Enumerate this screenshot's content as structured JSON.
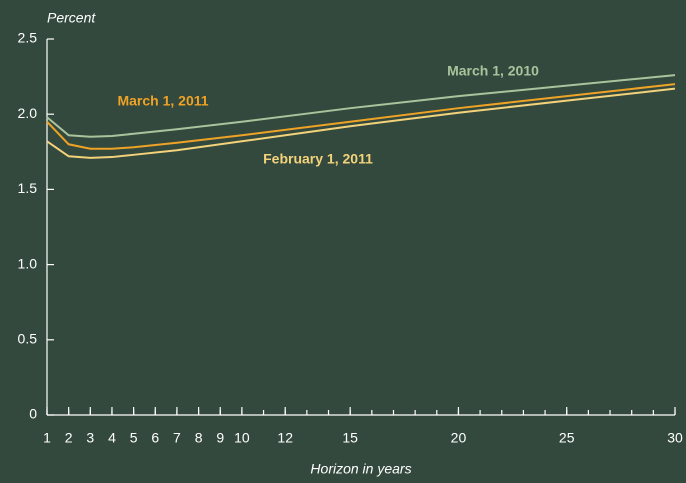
{
  "chart_data": {
    "type": "line",
    "ylabel": "Percent",
    "xlabel": "Horizon in years",
    "x": [
      1,
      2,
      3,
      4,
      5,
      7,
      10,
      15,
      20,
      25,
      30
    ],
    "series": [
      {
        "name": "March 1, 2010",
        "color": "#a9c39c",
        "values": [
          1.98,
          1.86,
          1.85,
          1.855,
          1.87,
          1.9,
          1.95,
          2.04,
          2.12,
          2.19,
          2.26
        ]
      },
      {
        "name": "March 1, 2011",
        "color": "#eea226",
        "values": [
          1.95,
          1.8,
          1.77,
          1.77,
          1.78,
          1.81,
          1.86,
          1.95,
          2.04,
          2.12,
          2.2
        ]
      },
      {
        "name": "February 1, 2011",
        "color": "#f2d27a",
        "values": [
          1.82,
          1.72,
          1.71,
          1.715,
          1.73,
          1.76,
          1.82,
          1.92,
          2.01,
          2.09,
          2.17
        ]
      }
    ],
    "xlim": [
      1,
      30
    ],
    "xticks": [
      1,
      2,
      3,
      4,
      5,
      6,
      7,
      8,
      9,
      10,
      12,
      15,
      20,
      25,
      30
    ],
    "xminor_ticks": [
      1,
      2,
      3,
      4,
      5,
      6,
      7,
      8,
      9,
      10,
      11,
      12,
      13,
      14,
      15,
      16,
      17,
      18,
      19,
      20,
      21,
      22,
      23,
      24,
      25,
      26,
      27,
      28,
      29,
      30
    ],
    "ylim": [
      0,
      2.5
    ],
    "yticks": [
      0,
      0.5,
      {
        "value": 1,
        "label": "1.0"
      },
      1.5,
      {
        "value": 2,
        "label": "2.0"
      },
      2.5
    ],
    "grid": false
  }
}
